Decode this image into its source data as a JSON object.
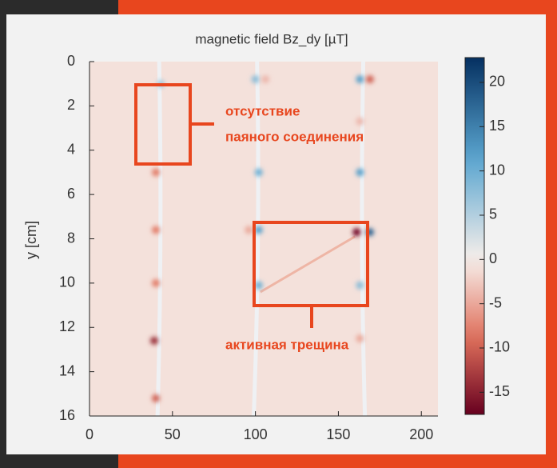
{
  "chart_data": {
    "type": "heatmap",
    "title": "magnetic field Bz_dy [µT]",
    "y_label": "y [cm]",
    "xlim": [
      0,
      210
    ],
    "ylim": [
      16,
      0
    ],
    "xticks": [
      0,
      50,
      100,
      150,
      200
    ],
    "yticks": [
      0,
      2,
      4,
      6,
      8,
      10,
      12,
      14,
      16
    ],
    "clim": [
      -17.5,
      22.8
    ],
    "cticks": [
      20,
      15,
      10,
      5,
      0,
      -5,
      -10,
      -15
    ],
    "background_value": -1,
    "spots": {
      "x": [
        43,
        40,
        40,
        40,
        39,
        40,
        100,
        106,
        102,
        96,
        102,
        102,
        163,
        169,
        163,
        163,
        161,
        169,
        163,
        163
      ],
      "y": [
        1,
        5,
        7.6,
        10,
        12.6,
        15.2,
        0.8,
        0.8,
        5,
        7.6,
        7.6,
        10.1,
        0.8,
        0.8,
        2.7,
        5,
        7.7,
        7.7,
        10.1,
        12.5
      ],
      "values": [
        6,
        -8,
        -8,
        -8,
        -14,
        -10,
        8,
        -4,
        10,
        -5,
        12,
        10,
        12,
        -10,
        -4,
        12,
        -17,
        18,
        8,
        -5
      ]
    },
    "annotations": [
      "отсутствие",
      "паяного соединения",
      "активная трещина"
    ]
  }
}
